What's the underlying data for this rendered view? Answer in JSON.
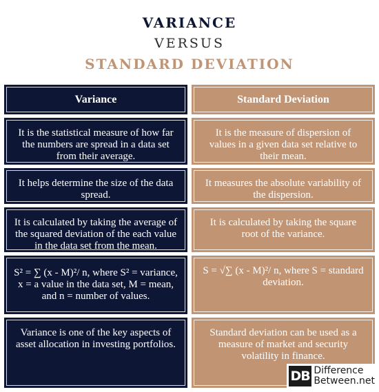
{
  "title": {
    "line1": "VARIANCE",
    "line2": "VERSUS",
    "line3": "STANDARD DEVIATION"
  },
  "colors": {
    "navy": "#0e1635",
    "tan": "#c19474"
  },
  "table": {
    "headers": [
      "Variance",
      "Standard Deviation"
    ],
    "rows": [
      {
        "left": "It is the statistical measure of how far the numbers are spread in a data set from their average.",
        "right": "It is the measure of dispersion of values in a given data set relative to their mean."
      },
      {
        "left": "It helps determine the size of the data spread.",
        "right": "It measures the absolute variability of the dispersion."
      },
      {
        "left": "It is calculated by taking the average of the squared deviation of the each value in the data set from the mean.",
        "right": "It is calculated by taking the square root of the variance."
      },
      {
        "left": "S² = ∑ (x - M)²/ n, where S² = variance, x = a value in the data set, M = mean, and n = number of values.",
        "right": "S = √∑ (x - M)²/ n, where S = standard deviation."
      },
      {
        "left": "Variance is one of the key aspects of asset allocation in investing portfolios.",
        "right": "Standard deviation can be used as a measure of market and security volatility in finance."
      }
    ]
  },
  "logo": {
    "mark": "DB",
    "line1": "Difference",
    "line2": "Between.net"
  }
}
